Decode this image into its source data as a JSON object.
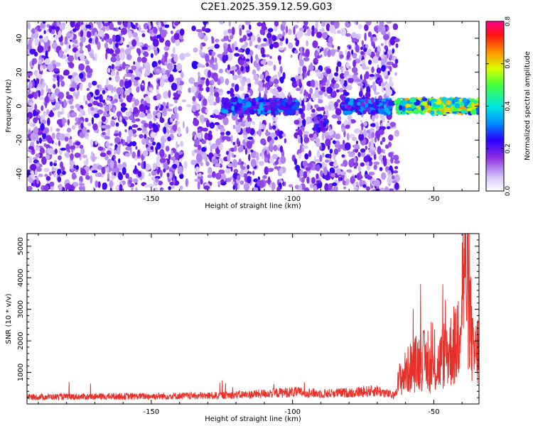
{
  "title": "C2E1.2025.359.12.59.G03",
  "chart_data": [
    {
      "type": "heatmap",
      "name": "spectrogram",
      "xlabel": "Height of straight line (km)",
      "ylabel": "Frequency (Hz)",
      "xlim": [
        -194,
        -34
      ],
      "ylim": [
        -50,
        50
      ],
      "xticks": [
        -150,
        -100,
        -50
      ],
      "yticks": [
        -40,
        -20,
        0,
        20,
        40
      ],
      "colorbar": {
        "label": "Normalized spectral amplitude",
        "range": [
          0,
          0.8
        ],
        "ticks": [
          "0.0",
          "0.2",
          "0.4",
          "0.6",
          "0.8"
        ]
      },
      "noise_region_end_km": -63,
      "signal_band": [
        {
          "x_start": -125,
          "x_end": -98,
          "freq_hz": 0,
          "peak_amplitude": 0.35
        },
        {
          "x_start": -92,
          "x_end": -88,
          "freq_hz": -10,
          "peak_amplitude": 0.25
        },
        {
          "x_start": -82,
          "x_end": -65,
          "freq_hz": 0,
          "peak_amplitude": 0.35
        },
        {
          "x_start": -63,
          "x_end": -34,
          "freq_hz": 0,
          "peak_amplitude": 0.65
        }
      ]
    },
    {
      "type": "line",
      "name": "snr",
      "xlabel": "Height of straight line (km)",
      "ylabel": "SNR (10 * v/v)",
      "xlim": [
        -194,
        -34
      ],
      "ylim": [
        0,
        5400
      ],
      "xticks": [
        -150,
        -100,
        -50
      ],
      "yticks": [
        1000,
        2000,
        3000,
        4000,
        5000
      ],
      "color": "#e8302a",
      "series": [
        {
          "x": -194,
          "y": 220
        },
        {
          "x": -180,
          "y": 230
        },
        {
          "x": -160,
          "y": 240
        },
        {
          "x": -145,
          "y": 250
        },
        {
          "x": -130,
          "y": 260
        },
        {
          "x": -115,
          "y": 300
        },
        {
          "x": -100,
          "y": 380
        },
        {
          "x": -90,
          "y": 330
        },
        {
          "x": -80,
          "y": 360
        },
        {
          "x": -70,
          "y": 420
        },
        {
          "x": -64,
          "y": 260
        },
        {
          "x": -62,
          "y": 900
        },
        {
          "x": -58,
          "y": 1300
        },
        {
          "x": -54,
          "y": 1600
        },
        {
          "x": -50,
          "y": 1100
        },
        {
          "x": -46,
          "y": 1800
        },
        {
          "x": -42,
          "y": 2000
        },
        {
          "x": -39,
          "y": 5300
        },
        {
          "x": -36,
          "y": 1600
        },
        {
          "x": -34,
          "y": 2000
        }
      ]
    }
  ]
}
